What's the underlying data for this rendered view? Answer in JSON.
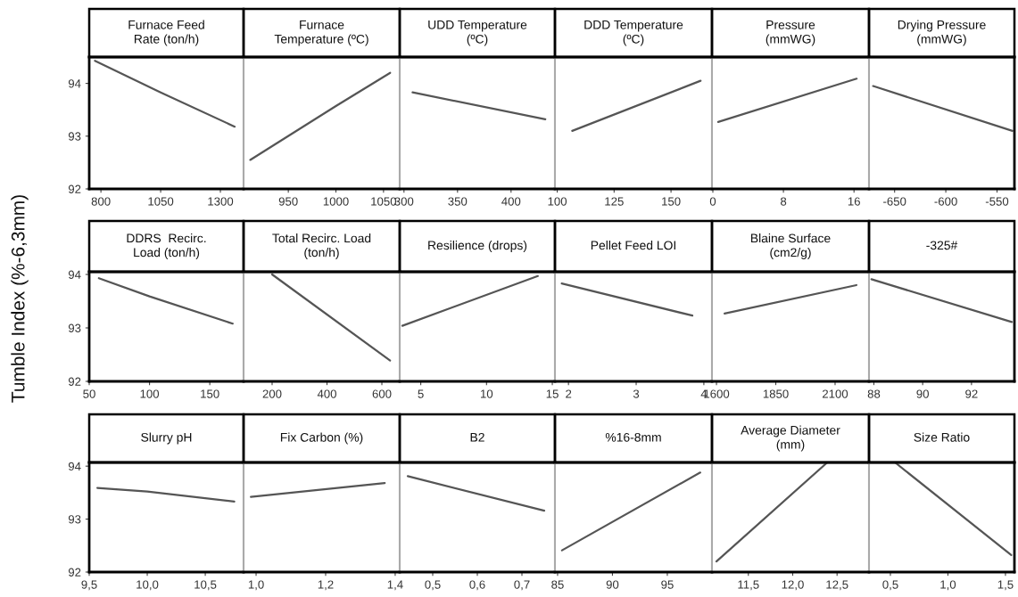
{
  "chart_data": [
    {
      "type": "line",
      "title": "Furnace Feed\nRate (ton/h)",
      "x": [
        775,
        1050,
        1360
      ],
      "values": [
        94.43,
        93.83,
        93.18
      ],
      "color": "#555555",
      "xlim": [
        751,
        1397
      ],
      "xticks": [
        800,
        1050,
        1300
      ],
      "ylim": [
        92,
        94.5
      ],
      "yticks": [
        92,
        93,
        94
      ]
    },
    {
      "type": "line",
      "title": "Furnace\nTemperature (ºC)",
      "x": [
        910,
        1000,
        1057
      ],
      "values": [
        92.55,
        93.57,
        94.2
      ],
      "color": "#555555",
      "xlim": [
        903,
        1067
      ],
      "xticks": [
        950,
        1000,
        1050
      ],
      "ylim": [
        92,
        94.5
      ],
      "yticks": [
        92,
        93,
        94
      ],
      "tick_labels": "x"
    },
    {
      "type": "line",
      "title": "UDD Temperature\n(ºC)",
      "x": [
        308,
        432
      ],
      "values": [
        93.83,
        93.32
      ],
      "color": "#555555",
      "xlim": [
        296,
        441
      ],
      "xticks": [
        300,
        350,
        400
      ],
      "ylim": [
        92,
        94.5
      ],
      "yticks": [
        92,
        93,
        94
      ],
      "tick_labels": "x"
    },
    {
      "type": "line",
      "title": "DDD Temperature\n(ºC)",
      "x": [
        106.6,
        163
      ],
      "values": [
        93.1,
        94.05
      ],
      "color": "#555555",
      "xlim": [
        99,
        168
      ],
      "xticks": [
        100,
        125,
        150
      ],
      "ylim": [
        92,
        94.5
      ],
      "yticks": [
        92,
        93,
        94
      ],
      "tick_labels": "x"
    },
    {
      "type": "line",
      "title": "Pressure\n(mmWG)",
      "x": [
        0.6,
        16.3
      ],
      "values": [
        93.27,
        94.09
      ],
      "color": "#555555",
      "xlim": [
        -0.1,
        17.7
      ],
      "xticks": [
        0,
        8,
        16
      ],
      "ylim": [
        92,
        94.5
      ],
      "yticks": [
        92,
        93,
        94
      ],
      "tick_labels": "x"
    },
    {
      "type": "line",
      "title": "Drying Pressure\n(mmWG)",
      "x": [
        -671,
        -535
      ],
      "values": [
        93.95,
        93.1
      ],
      "color": "#555555",
      "xlim": [
        -675,
        -533
      ],
      "xticks": [
        -650,
        -600,
        -550
      ],
      "ylim": [
        92,
        94.5
      ],
      "yticks": [
        92,
        93,
        94
      ],
      "tick_labels": "x"
    },
    {
      "type": "line",
      "title": "DDRS  Recirc.\nLoad (ton/h)",
      "ylabel": "Tumble Index (%-6,3mm)",
      "x": [
        58,
        100,
        169
      ],
      "values": [
        93.93,
        93.59,
        93.08
      ],
      "color": "#555555",
      "xlim": [
        50,
        178
      ],
      "xticks": [
        50,
        100,
        150
      ],
      "ylim": [
        92,
        94.05
      ],
      "yticks": [
        92,
        93,
        94
      ]
    },
    {
      "type": "line",
      "title": "Total Recirc. Load\n(ton/h)",
      "x": [
        200,
        630
      ],
      "values": [
        94.0,
        92.39
      ],
      "color": "#555555",
      "xlim": [
        96,
        665
      ],
      "xticks": [
        200,
        400,
        600
      ],
      "ylim": [
        92,
        94.05
      ],
      "yticks": [
        92,
        93,
        94
      ],
      "tick_labels": "x"
    },
    {
      "type": "line",
      "title": "Resilience (drops)",
      "x": [
        3.6,
        13.9
      ],
      "values": [
        93.04,
        93.97
      ],
      "color": "#555555",
      "xlim": [
        3.4,
        15.2
      ],
      "xticks": [
        5,
        10,
        15
      ],
      "ylim": [
        92,
        94.05
      ],
      "yticks": [
        92,
        93,
        94
      ],
      "tick_labels": "x"
    },
    {
      "type": "line",
      "title": "Pellet Feed LOI",
      "x": [
        1.9,
        3.83
      ],
      "values": [
        93.83,
        93.23
      ],
      "color": "#555555",
      "xlim": [
        1.8,
        4.12
      ],
      "xticks": [
        2,
        3,
        4
      ],
      "ylim": [
        92,
        94.05
      ],
      "yticks": [
        92,
        93,
        94
      ],
      "tick_labels": "x"
    },
    {
      "type": "line",
      "title": "Blaine Surface\n(cm2/g)",
      "x": [
        1634,
        2190
      ],
      "values": [
        93.27,
        93.8
      ],
      "color": "#555555",
      "xlim": [
        1581,
        2243
      ],
      "xticks": [
        1600,
        1850,
        2100
      ],
      "ylim": [
        92,
        94.05
      ],
      "yticks": [
        92,
        93,
        94
      ],
      "tick_labels": "x"
    },
    {
      "type": "line",
      "title": "-325#",
      "x": [
        87.9,
        93.65
      ],
      "values": [
        93.91,
        93.11
      ],
      "color": "#555555",
      "xlim": [
        87.8,
        93.76
      ],
      "xticks": [
        88,
        90,
        92
      ],
      "ylim": [
        92,
        94.05
      ],
      "yticks": [
        92,
        93,
        94
      ],
      "tick_labels": "x"
    },
    {
      "type": "line",
      "title": "Slurry pH",
      "x": [
        9.57,
        10.0,
        10.75
      ],
      "values": [
        93.59,
        93.52,
        93.33
      ],
      "color": "#555555",
      "xlim": [
        9.5,
        10.83
      ],
      "xticks": [
        {
          "value": 9.5,
          "label": "9,5"
        },
        {
          "value": 10.0,
          "label": "10,0"
        },
        {
          "value": 10.5,
          "label": "10,5"
        }
      ],
      "ylim": [
        92,
        94.07
      ],
      "yticks": [
        92,
        93,
        94
      ]
    },
    {
      "type": "line",
      "title": "Fix Carbon (%)",
      "x": [
        0.985,
        1.37
      ],
      "values": [
        93.42,
        93.68
      ],
      "color": "#555555",
      "xlim": [
        0.964,
        1.413
      ],
      "xticks": [
        {
          "value": 1.0,
          "label": "1,0"
        },
        {
          "value": 1.2,
          "label": "1,2"
        },
        {
          "value": 1.4,
          "label": "1,4"
        }
      ],
      "ylim": [
        92,
        94.07
      ],
      "yticks": [
        92,
        93,
        94
      ],
      "tick_labels": "x"
    },
    {
      "type": "line",
      "title": "B2",
      "x": [
        0.444,
        0.75
      ],
      "values": [
        93.81,
        93.16
      ],
      "color": "#555555",
      "xlim": [
        0.426,
        0.774
      ],
      "xticks": [
        {
          "value": 0.5,
          "label": "0,5"
        },
        {
          "value": 0.6,
          "label": "0,6"
        },
        {
          "value": 0.7,
          "label": "0,7"
        }
      ],
      "ylim": [
        92,
        94.07
      ],
      "yticks": [
        92,
        93,
        94
      ],
      "tick_labels": "x"
    },
    {
      "type": "line",
      "title": "%16-8mm",
      "x": [
        85.4,
        98.0
      ],
      "values": [
        92.41,
        93.88
      ],
      "color": "#555555",
      "xlim": [
        84.76,
        99.07
      ],
      "xticks": [
        85,
        90,
        95
      ],
      "ylim": [
        92,
        94.07
      ],
      "yticks": [
        92,
        93,
        94
      ],
      "tick_labels": "x"
    },
    {
      "type": "line",
      "title": "Average Diameter\n(mm)",
      "x": [
        11.14,
        12.39
      ],
      "values": [
        92.2,
        94.07
      ],
      "color": "#555555",
      "xlim": [
        11.09,
        12.86
      ],
      "xticks": [
        {
          "value": 11.5,
          "label": "11,5"
        },
        {
          "value": 12.0,
          "label": "12,0"
        },
        {
          "value": 12.5,
          "label": "12,5"
        }
      ],
      "ylim": [
        92,
        94.07
      ],
      "yticks": [
        92,
        93,
        94
      ],
      "tick_labels": "x"
    },
    {
      "type": "line",
      "title": "Size Ratio",
      "x": [
        0.54,
        1.55
      ],
      "values": [
        94.07,
        92.32
      ],
      "color": "#555555",
      "xlim": [
        0.314,
        1.578
      ],
      "xticks": [
        {
          "value": 0.5,
          "label": "0,5"
        },
        {
          "value": 1.0,
          "label": "1,0"
        },
        {
          "value": 1.5,
          "label": "1,5"
        }
      ],
      "ylim": [
        92,
        94.07
      ],
      "yticks": [
        92,
        93,
        94
      ],
      "tick_labels": "x"
    }
  ]
}
